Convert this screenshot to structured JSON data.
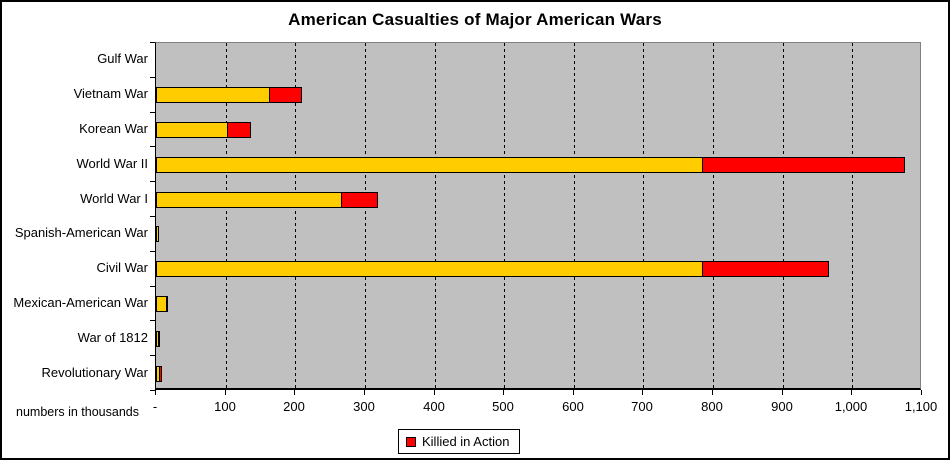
{
  "title": "American Casualties of Major American Wars",
  "footnote": "numbers in thousands",
  "legend": {
    "kia_label": "Killied in Action",
    "kia_color": "#FF0000"
  },
  "colors": {
    "plot_background": "#C0C0C0",
    "bar_other": "#FFCC00",
    "bar_kia": "#FF0000",
    "bar_border": "#000000"
  },
  "chart_data": {
    "type": "bar",
    "orientation": "horizontal",
    "stacked": true,
    "title": "American Casualties of Major American Wars",
    "unit": "thousands",
    "unit_note": "numbers in thousands",
    "categories_top_to_bottom": [
      "Gulf War",
      "Vietnam War",
      "Korean War",
      "World War II",
      "World War I",
      "Spanish-American War",
      "Civil War",
      "Mexican-American War",
      "War of 1812",
      "Revolutionary War"
    ],
    "series": [
      {
        "name": "",
        "color": "#FFCC00",
        "legend_shown": false,
        "values": [
          0,
          164,
          103,
          785,
          267,
          4,
          786,
          16,
          4.5,
          6.2
        ]
      },
      {
        "name": "Killied in Action",
        "color": "#FF0000",
        "legend_shown": true,
        "values": [
          0,
          47,
          34,
          291,
          53,
          0.4,
          183,
          1.7,
          2.3,
          4.4
        ]
      }
    ],
    "totals": [
      0,
      211,
      137,
      1076,
      320,
      4.4,
      969,
      17.7,
      6.8,
      10.6
    ],
    "xlim": [
      0,
      1100
    ],
    "x_tick_interval": 100,
    "x_tick_labels": [
      "-",
      "100",
      "200",
      "300",
      "400",
      "500",
      "600",
      "700",
      "800",
      "900",
      "1,000",
      "1,100"
    ],
    "gridlines": "vertical-dashed",
    "legend_position": "bottom-center"
  }
}
